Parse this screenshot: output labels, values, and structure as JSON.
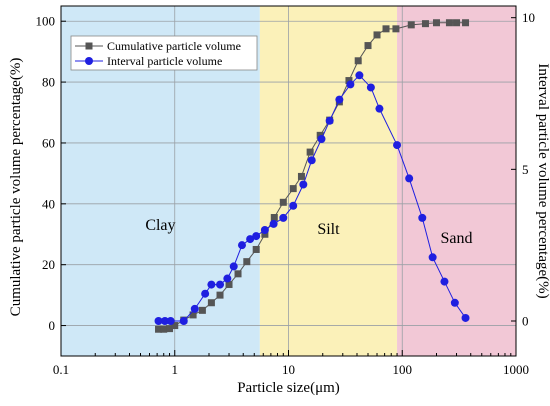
{
  "chart_data": {
    "type": "line",
    "xlabel": "Particle size(μm)",
    "ylabel_left": "Cumulative particle volume percentage(%)",
    "ylabel_right": "Interval particle volume percentage(%)",
    "x_scale": "log",
    "xlim": [
      0.1,
      1000
    ],
    "x_ticks": [
      0.1,
      1,
      10,
      100,
      1000
    ],
    "x_tick_labels": [
      "0.1",
      "1",
      "10",
      "100",
      "1000"
    ],
    "ylim_left": [
      -10,
      105
    ],
    "y_ticks_left": [
      0,
      20,
      40,
      60,
      80,
      100
    ],
    "y_tick_labels_left": [
      "0",
      "20",
      "40",
      "60",
      "80",
      "100"
    ],
    "ylim_right": [
      -1.154,
      10.385
    ],
    "y_ticks_right": [
      0,
      5,
      10
    ],
    "y_tick_labels_right": [
      "0",
      "5",
      "10"
    ],
    "grid": true,
    "legend_position": "top-left",
    "regions": [
      {
        "label": "Clay",
        "x_start": 0.1,
        "x_end": 5.6,
        "color": "#cfe8f7"
      },
      {
        "label": "Silt",
        "x_start": 5.6,
        "x_end": 90,
        "color": "#fbf1b9"
      },
      {
        "label": "Sand",
        "x_start": 90,
        "x_end": 1000,
        "color": "#f2c8d6"
      }
    ],
    "series": [
      {
        "name": "Cumulative particle volume",
        "axis": "left",
        "color": "#555555",
        "marker": "square",
        "points": [
          [
            0.72,
            -1.2
          ],
          [
            0.8,
            -1.2
          ],
          [
            0.9,
            -1.0
          ],
          [
            1.0,
            0.0
          ],
          [
            1.2,
            1.8
          ],
          [
            1.45,
            3.5
          ],
          [
            1.75,
            5.0
          ],
          [
            2.1,
            7.5
          ],
          [
            2.5,
            10.0
          ],
          [
            3.0,
            13.5
          ],
          [
            3.6,
            17.0
          ],
          [
            4.3,
            21.0
          ],
          [
            5.2,
            25.0
          ],
          [
            6.2,
            30.0
          ],
          [
            7.5,
            35.5
          ],
          [
            9.0,
            40.5
          ],
          [
            11.0,
            45.0
          ],
          [
            13.0,
            49.0
          ],
          [
            15.5,
            57.0
          ],
          [
            19.0,
            62.5
          ],
          [
            23.0,
            67.5
          ],
          [
            28.0,
            73.5
          ],
          [
            34.0,
            80.5
          ],
          [
            41.0,
            87.0
          ],
          [
            50.0,
            92.0
          ],
          [
            60.0,
            95.5
          ],
          [
            72.0,
            97.5
          ],
          [
            88.0,
            97.5
          ],
          [
            120.0,
            98.8
          ],
          [
            160.0,
            99.2
          ],
          [
            200.0,
            99.5
          ],
          [
            260.0,
            99.5
          ],
          [
            300.0,
            99.5
          ],
          [
            360.0,
            99.5
          ]
        ]
      },
      {
        "name": "Interval particle volume",
        "axis": "right",
        "color": "#1f1fe0",
        "marker": "circle",
        "points": [
          [
            0.72,
            0.0
          ],
          [
            0.82,
            0.0
          ],
          [
            0.92,
            0.0
          ],
          [
            1.2,
            0.0
          ],
          [
            1.5,
            0.4
          ],
          [
            1.85,
            0.9
          ],
          [
            2.1,
            1.2
          ],
          [
            2.5,
            1.2
          ],
          [
            2.9,
            1.4
          ],
          [
            3.3,
            1.8
          ],
          [
            3.9,
            2.5
          ],
          [
            4.6,
            2.7
          ],
          [
            5.2,
            2.8
          ],
          [
            6.2,
            3.0
          ],
          [
            7.4,
            3.2
          ],
          [
            9.0,
            3.4
          ],
          [
            11.0,
            3.8
          ],
          [
            13.5,
            4.5
          ],
          [
            16.0,
            5.3
          ],
          [
            19.5,
            6.0
          ],
          [
            23.0,
            6.6
          ],
          [
            28.0,
            7.3
          ],
          [
            35.0,
            7.8
          ],
          [
            42.0,
            8.1
          ],
          [
            53.0,
            7.7
          ],
          [
            63.0,
            7.0
          ],
          [
            90.0,
            5.8
          ],
          [
            115.0,
            4.7
          ],
          [
            150.0,
            3.4
          ],
          [
            185.0,
            2.1
          ],
          [
            235.0,
            1.3
          ],
          [
            290.0,
            0.6
          ],
          [
            360.0,
            0.1
          ]
        ]
      }
    ]
  }
}
